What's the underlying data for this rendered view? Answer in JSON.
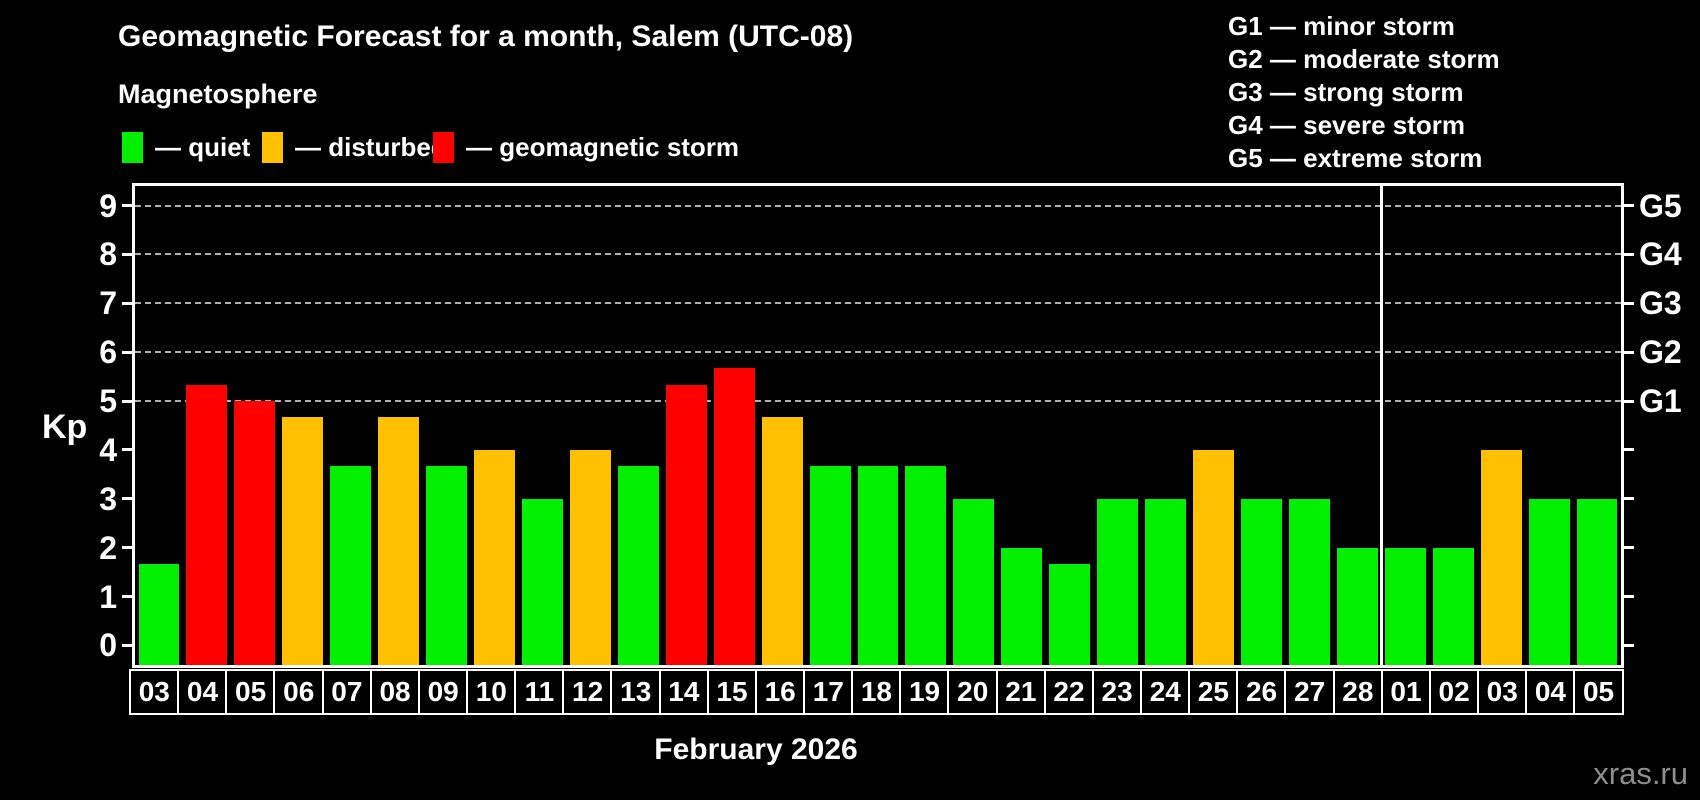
{
  "title": "Geomagnetic Forecast for a month, Salem (UTC-08)",
  "subtitle": "Magnetosphere",
  "legend": [
    {
      "label": "— quiet",
      "color": "#00f000"
    },
    {
      "label": "— disturbed",
      "color": "#ffc000"
    },
    {
      "label": "— geomagnetic storm",
      "color": "#ff0000"
    }
  ],
  "g_legend": [
    "G1 — minor storm",
    "G2 — moderate storm",
    "G3 — strong storm",
    "G4 — severe storm",
    "G5 — extreme storm"
  ],
  "y_axis_label": "Kp",
  "x_axis_label": "February 2026",
  "watermark": "xras.ru",
  "chart_data": {
    "type": "bar",
    "title": "Geomagnetic Forecast for a month, Salem (UTC-08)",
    "subtitle": "Magnetosphere",
    "ylabel": "Kp",
    "xlabel": "February 2026",
    "categories": [
      "03",
      "04",
      "05",
      "06",
      "07",
      "08",
      "09",
      "10",
      "11",
      "12",
      "13",
      "14",
      "15",
      "16",
      "17",
      "18",
      "19",
      "20",
      "21",
      "22",
      "23",
      "24",
      "25",
      "26",
      "27",
      "28",
      "01",
      "02",
      "03",
      "04",
      "05"
    ],
    "values": [
      1.67,
      5.33,
      5.0,
      4.67,
      3.67,
      4.67,
      3.67,
      4.0,
      3.0,
      4.0,
      3.67,
      5.33,
      5.67,
      4.67,
      3.67,
      3.67,
      3.67,
      3.0,
      2.0,
      1.67,
      3.0,
      3.0,
      4.0,
      3.0,
      3.0,
      2.0,
      2.0,
      2.0,
      4.0,
      3.0,
      3.0
    ],
    "statuses": [
      "quiet",
      "storm",
      "storm",
      "disturbed",
      "quiet",
      "disturbed",
      "quiet",
      "disturbed",
      "quiet",
      "disturbed",
      "quiet",
      "storm",
      "storm",
      "disturbed",
      "quiet",
      "quiet",
      "quiet",
      "quiet",
      "quiet",
      "quiet",
      "quiet",
      "quiet",
      "disturbed",
      "quiet",
      "quiet",
      "quiet",
      "quiet",
      "quiet",
      "disturbed",
      "quiet",
      "quiet"
    ],
    "status_colors": {
      "quiet": "#00f000",
      "disturbed": "#ffc000",
      "storm": "#ff0000"
    },
    "ylim": [
      -0.4,
      9.4
    ],
    "y_ticks": [
      0,
      1,
      2,
      3,
      4,
      5,
      6,
      7,
      8,
      9
    ],
    "gridline_levels": [
      5,
      6,
      7,
      8,
      9
    ],
    "grid_style": "dashed horizontal only at storm levels",
    "right_axis_labels": [
      {
        "value": 5,
        "label": "G1"
      },
      {
        "value": 6,
        "label": "G2"
      },
      {
        "value": 7,
        "label": "G3"
      },
      {
        "value": 8,
        "label": "G4"
      },
      {
        "value": 9,
        "label": "G5"
      }
    ],
    "month_separator_after_index": 25,
    "legend_position": "top-left"
  }
}
